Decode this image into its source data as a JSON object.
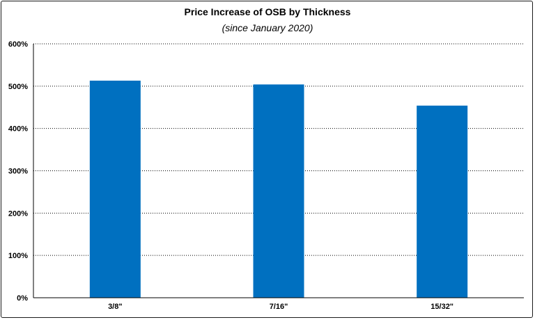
{
  "chart_data": {
    "type": "bar",
    "title": "Price Increase of OSB by Thickness",
    "subtitle": "(since January 2020)",
    "categories": [
      "3/8\"",
      "7/16\"",
      "15/32\""
    ],
    "values": [
      513,
      504,
      454
    ],
    "value_unit": "%",
    "ylim": [
      0,
      600
    ],
    "yticks": [
      0,
      100,
      200,
      300,
      400,
      500,
      600
    ],
    "ytick_labels": [
      "0%",
      "100%",
      "200%",
      "300%",
      "400%",
      "500%",
      "600%"
    ],
    "grid": "horizontal dotted",
    "legend": "none",
    "bar_color": "#0070C0"
  }
}
